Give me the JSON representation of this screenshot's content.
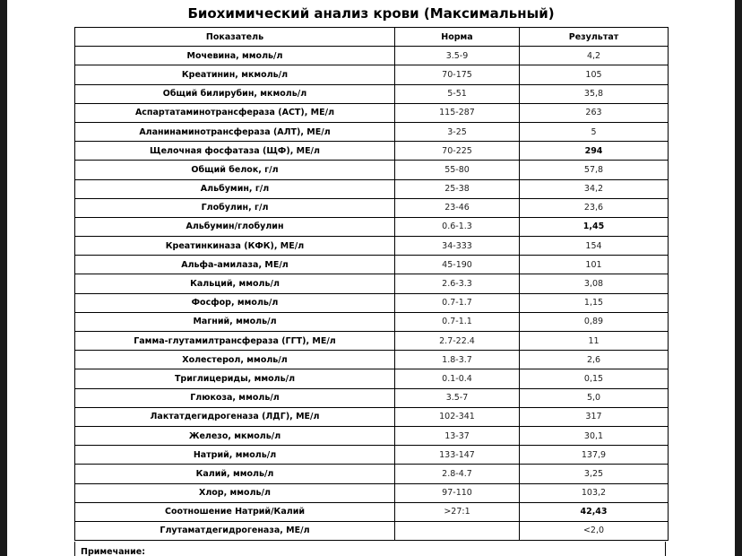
{
  "title": "Биохимический анализ крови (Максимальный)",
  "headers": [
    "Показатель",
    "Норма",
    "Результат"
  ],
  "rows": [
    {
      "name": "Мочевина, ммоль/л",
      "norm": "3.5-9",
      "result": "4,2",
      "bold": false
    },
    {
      "name": "Креатинин, мкмоль/л",
      "norm": "70-175",
      "result": "105",
      "bold": false
    },
    {
      "name": "Общий билирубин, мкмоль/л",
      "norm": "5-51",
      "result": "35,8",
      "bold": false
    },
    {
      "name": "Аспартатаминотрансфераза (АСТ), МЕ/л",
      "norm": "115-287",
      "result": "263",
      "bold": false
    },
    {
      "name": "Аланинаминотрансфераза (АЛТ), МЕ/л",
      "norm": "3-25",
      "result": "5",
      "bold": false
    },
    {
      "name": "Щелочная фосфатаза (ЩФ), МЕ/л",
      "norm": "70-225",
      "result": "294",
      "bold": true
    },
    {
      "name": "Общий белок, г/л",
      "norm": "55-80",
      "result": "57,8",
      "bold": false
    },
    {
      "name": "Альбумин, г/л",
      "norm": "25-38",
      "result": "34,2",
      "bold": false
    },
    {
      "name": "Глобулин, г/л",
      "norm": "23-46",
      "result": "23,6",
      "bold": false
    },
    {
      "name": "Альбумин/глобулин",
      "norm": "0.6-1.3",
      "result": "1,45",
      "bold": true
    },
    {
      "name": "Креатинкиназа (КФК), МЕ/л",
      "norm": "34-333",
      "result": "154",
      "bold": false
    },
    {
      "name": "Альфа-амилаза, МЕ/л",
      "norm": "45-190",
      "result": "101",
      "bold": false
    },
    {
      "name": "Кальций, ммоль/л",
      "norm": "2.6-3.3",
      "result": "3,08",
      "bold": false
    },
    {
      "name": "Фосфор, ммоль/л",
      "norm": "0.7-1.7",
      "result": "1,15",
      "bold": false
    },
    {
      "name": "Магний, ммоль/л",
      "norm": "0.7-1.1",
      "result": "0,89",
      "bold": false
    },
    {
      "name": "Гамма-глутамилтрансфераза (ГГТ), МЕ/л",
      "norm": "2.7-22.4",
      "result": "11",
      "bold": false
    },
    {
      "name": "Холестерол, ммоль/л",
      "norm": "1.8-3.7",
      "result": "2,6",
      "bold": false
    },
    {
      "name": "Триглицериды, ммоль/л",
      "norm": "0.1-0.4",
      "result": "0,15",
      "bold": false
    },
    {
      "name": "Глюкоза, ммоль/л",
      "norm": "3.5-7",
      "result": "5,0",
      "bold": false
    },
    {
      "name": "Лактатдегидрогеназа (ЛДГ), МЕ/л",
      "norm": "102-341",
      "result": "317",
      "bold": false
    },
    {
      "name": "Железо, мкмоль/л",
      "norm": "13-37",
      "result": "30,1",
      "bold": false
    },
    {
      "name": "Натрий, ммоль/л",
      "norm": "133-147",
      "result": "137,9",
      "bold": false
    },
    {
      "name": "Калий, ммоль/л",
      "norm": "2.8-4.7",
      "result": "3,25",
      "bold": false
    },
    {
      "name": "Хлор, ммоль/л",
      "norm": "97-110",
      "result": "103,2",
      "bold": false
    },
    {
      "name": "Соотношение Натрий/Калий",
      "norm": ">27:1",
      "result": "42,43",
      "bold": true
    },
    {
      "name": "Глутаматдегидрогеназа, МЕ/л",
      "norm": "",
      "result": "<2,0",
      "bold": false
    }
  ],
  "note_label": "Примечание:"
}
